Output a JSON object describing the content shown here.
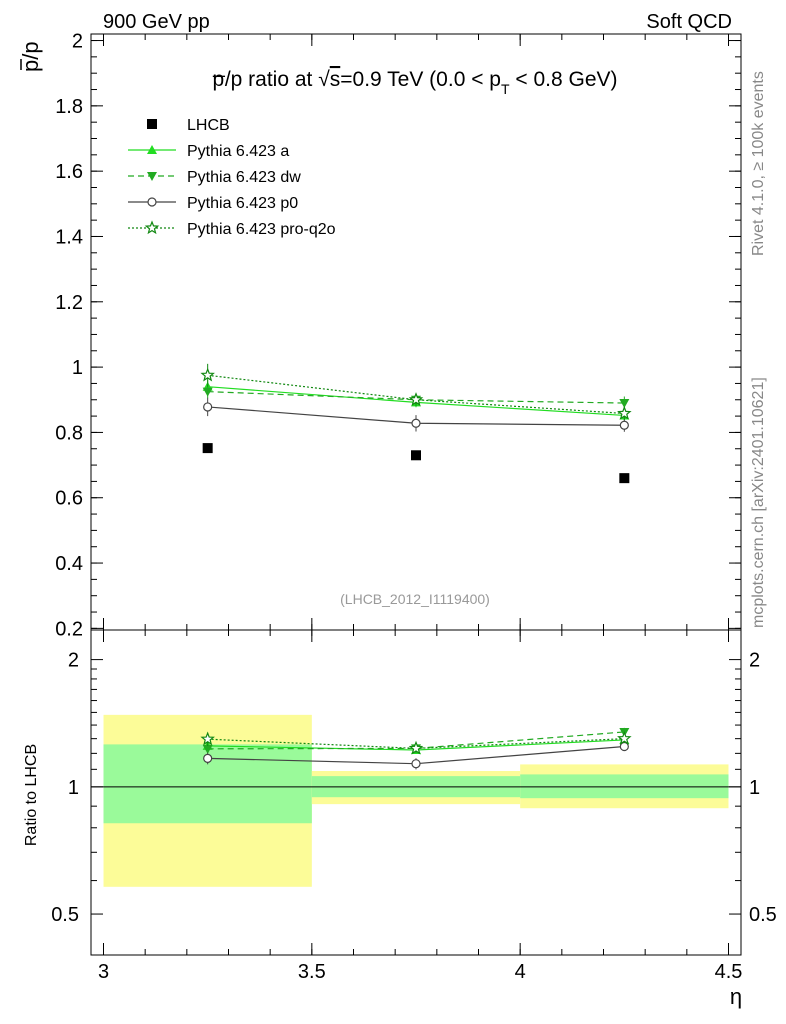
{
  "header": {
    "left": "900 GeV pp",
    "right": "Soft QCD"
  },
  "side_text": {
    "rivet": "Rivet 4.1.0, ≥ 100k events",
    "source": "mcplots.cern.ch [arXiv:2401.10621]"
  },
  "chart_data": {
    "type": "scatter",
    "title": "p̄/p ratio at √s=0.9 TeV (0.0 < pT < 0.8 GeV)",
    "ylabel": "p̄/p",
    "xlabel": "η",
    "watermark": "(LHCB_2012_I1119400)",
    "xlim": [
      2.97,
      4.53
    ],
    "ylim": [
      0.195,
      2.02
    ],
    "xticks": [
      3,
      3.5,
      4,
      4.5
    ],
    "xtick_labels": [
      "3",
      "3.5",
      "4",
      "4.5"
    ],
    "yticks": [
      0.2,
      0.4,
      0.6,
      0.8,
      1.0,
      1.2,
      1.4,
      1.6,
      1.8,
      2.0
    ],
    "ytick_labels": [
      "0.2",
      "0.4",
      "0.6",
      "0.8",
      "1",
      "1.2",
      "1.4",
      "1.6",
      "1.8",
      "2"
    ],
    "x": [
      3.25,
      3.75,
      4.25
    ],
    "series": [
      {
        "name": "LHCB",
        "kind": "data",
        "marker": "square",
        "color": "#000000",
        "values": [
          0.752,
          0.73,
          0.66
        ]
      },
      {
        "name": "Pythia 6.423 a",
        "marker": "triangle-up",
        "line": "solid",
        "color": "#22dd22",
        "values": [
          0.94,
          0.892,
          0.852
        ],
        "errors": [
          0.02,
          0.015,
          0.015
        ]
      },
      {
        "name": "Pythia 6.423 dw",
        "marker": "triangle-down",
        "line": "dashed",
        "color": "#22aa22",
        "values": [
          0.925,
          0.9,
          0.89
        ],
        "errors": [
          0.02,
          0.02,
          0.02
        ]
      },
      {
        "name": "Pythia 6.423 p0",
        "marker": "circle-open",
        "line": "solid",
        "color": "#444444",
        "values": [
          0.878,
          0.828,
          0.822
        ],
        "errors": [
          0.028,
          0.025,
          0.02
        ]
      },
      {
        "name": "Pythia 6.423 pro-q2o",
        "marker": "star-open",
        "line": "dotted",
        "color": "#118811",
        "values": [
          0.975,
          0.9,
          0.858
        ],
        "errors": [
          0.035,
          0.02,
          0.02
        ]
      }
    ],
    "ratio": {
      "ylabel": "Ratio to LHCB",
      "ylim": [
        0.4,
        2.35
      ],
      "log": true,
      "yticks": [
        0.5,
        1,
        2
      ],
      "ytick_labels": [
        "0.5",
        "1",
        "2"
      ],
      "bins": [
        {
          "lo": 3.0,
          "hi": 3.5,
          "inner": [
            0.82,
            1.26
          ],
          "outer": [
            0.58,
            1.48
          ]
        },
        {
          "lo": 3.5,
          "hi": 4.0,
          "inner": [
            0.945,
            1.06
          ],
          "outer": [
            0.91,
            1.09
          ]
        },
        {
          "lo": 4.0,
          "hi": 4.5,
          "inner": [
            0.94,
            1.07
          ],
          "outer": [
            0.89,
            1.13
          ]
        }
      ],
      "band_colors": {
        "inner": "#9afa9a",
        "outer": "#fcfc98"
      }
    }
  }
}
